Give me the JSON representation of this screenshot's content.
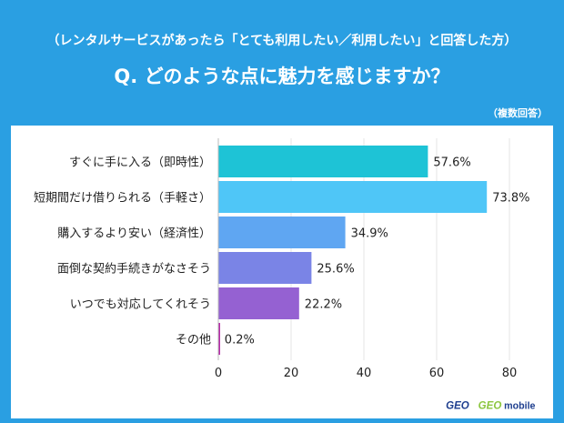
{
  "header": {
    "subtitle": "（レンタルサービスがあったら「とても利用したい／利用したい」と回答した方）",
    "question": "Q. どのような点に魅力を感じますか？",
    "note": "（複数回答）"
  },
  "logos": {
    "geo": "GEO",
    "geo_mobile": "mobile"
  },
  "chart_data": {
    "type": "bar",
    "orientation": "horizontal",
    "categories": [
      "すぐに手に入る（即時性）",
      "短期間だけ借りられる（手軽さ）",
      "購入するより安い（経済性）",
      "面倒な契約手続きがなさそう",
      "いつでも対応してくれそう",
      "その他"
    ],
    "values": [
      57.6,
      73.8,
      34.9,
      25.6,
      22.2,
      0.2
    ],
    "value_labels": [
      "57.6%",
      "73.8%",
      "34.9%",
      "25.6%",
      "22.2%",
      "0.2%"
    ],
    "colors": [
      "#1ec3d6",
      "#4fc6f7",
      "#5fa6f2",
      "#7a84e6",
      "#9561d2",
      "#b62aa8"
    ],
    "xlim": [
      0,
      90
    ],
    "xticks": [
      0,
      20,
      40,
      60,
      80
    ],
    "grid": true,
    "legend": "none"
  }
}
